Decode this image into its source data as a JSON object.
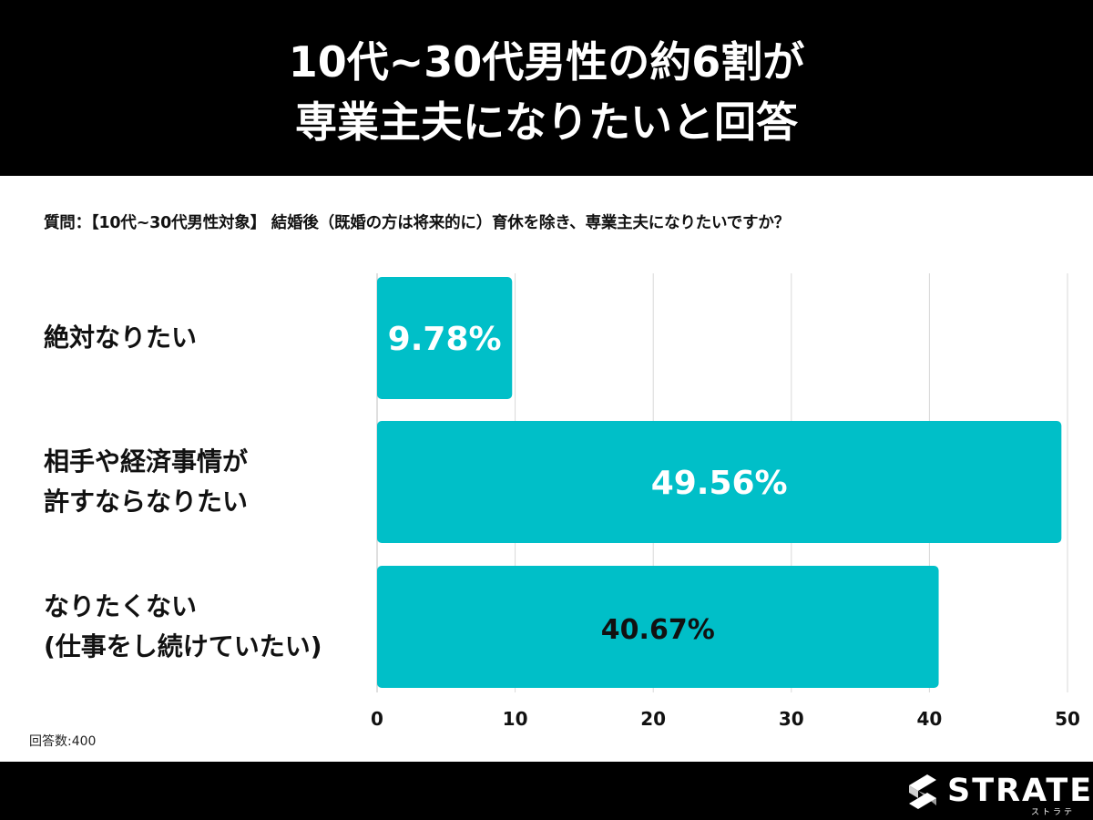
{
  "header": {
    "title_line1": "10代~30代男性の約6割が",
    "title_line2": "専業主夫になりたいと回答"
  },
  "question": "質問：【10代~30代男性対象】 結婚後（既婚の方は将来的に）育休を除き、専業主夫になりたいですか？",
  "chart_data": {
    "type": "bar",
    "orientation": "horizontal",
    "categories": [
      [
        "絶対なりたい"
      ],
      [
        "相手や経済事情が",
        "許すならなりたい"
      ],
      [
        "なりたくない",
        "(仕事をし続けていたい)"
      ]
    ],
    "values": [
      9.78,
      49.56,
      40.67
    ],
    "data_labels": [
      "9.78%",
      "49.56%",
      "40.67%"
    ],
    "data_label_colors": [
      "#ffffff",
      "#ffffff",
      "#111111"
    ],
    "xlim": [
      0,
      50
    ],
    "xticks": [
      "0",
      "10",
      "20",
      "30",
      "40",
      "50"
    ],
    "grid": true,
    "bar_color": "#00bfc8",
    "legend": "none"
  },
  "respondents": "回答数:400",
  "footer": {
    "logo_text": "STRATE",
    "logo_sub": "ストラテ",
    "logo_icon": "strate-s-icon"
  }
}
